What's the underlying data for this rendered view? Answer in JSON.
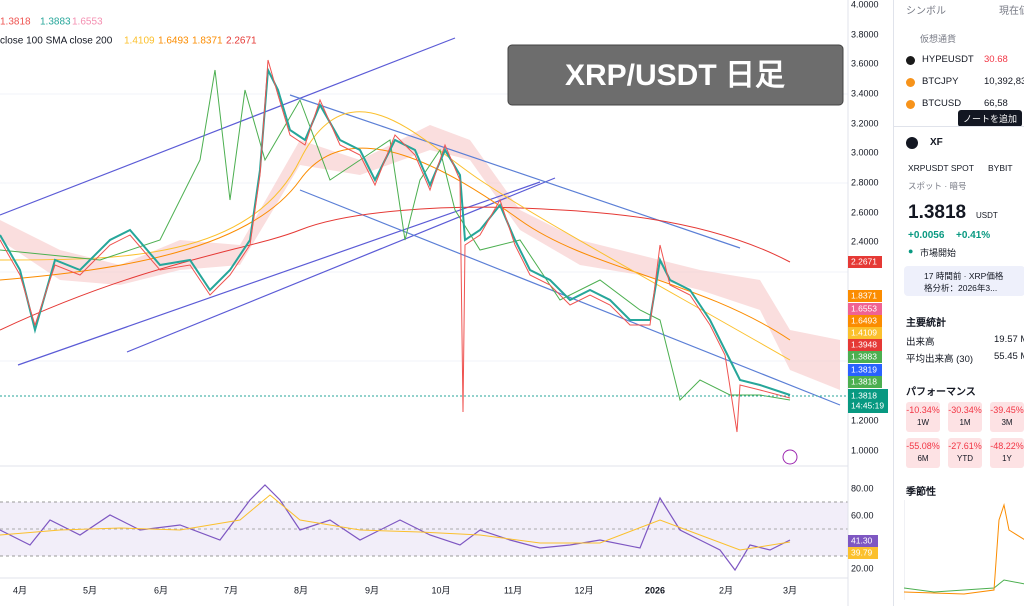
{
  "legend": {
    "line1": [
      "1.3818",
      "1.3883",
      "1.6553"
    ],
    "line2_label": "close 100 SMA close 200",
    "line2": [
      "1.4109",
      "1.6493",
      "1.8371",
      "2.2671"
    ]
  },
  "banner": "XRP/USDT 日足",
  "price_axis": [
    "4.0000",
    "3.8000",
    "3.6000",
    "3.4000",
    "3.2000",
    "3.0000",
    "2.8000",
    "2.6000",
    "2.4000",
    "1.2000",
    "1.0000"
  ],
  "price_tags": [
    "2.2671",
    "1.8371",
    "1.6553",
    "1.6493",
    "1.4109",
    "1.3948",
    "1.3883",
    "1.3819",
    "1.3818"
  ],
  "last_price": {
    "price": "1.3818",
    "countdown": "14:45:19"
  },
  "rsi_axis": [
    "80.00",
    "60.00",
    "20.00"
  ],
  "rsi_tags": [
    "41.30",
    "39.79"
  ],
  "time_axis": [
    "4月",
    "5月",
    "6月",
    "7月",
    "8月",
    "9月",
    "10月",
    "11月",
    "12月",
    "2026",
    "2月",
    "3月"
  ],
  "panel": {
    "col_symbol": "シンボル",
    "col_price": "現在値",
    "section": "仮想通貨",
    "watchlist": [
      {
        "symbol": "HYPEUSDT",
        "price": "30.68"
      },
      {
        "symbol": "BTCJPY",
        "price": "10,392,83"
      },
      {
        "symbol": "BTCUSD",
        "price": "66,58"
      }
    ],
    "tooltip": "ノートを追加",
    "ticker": "XF",
    "pair": "XRPUSDT SPOT",
    "exchange": "BYBIT",
    "kind": "スポット · 暗号",
    "price": "1.3818",
    "currency": "USDT",
    "change": "+0.0056",
    "change_pct": "+0.41%",
    "market": "市場開始",
    "news_time": "17 時間前 · XRP価格",
    "news": "格分析：2026年3...",
    "stats_title": "主要統計",
    "stats": [
      {
        "label": "出来高",
        "value": "19.57 M"
      },
      {
        "label": "平均出来高 (30)",
        "value": "55.45 M"
      }
    ],
    "perf_title": "パフォーマンス",
    "perf": [
      {
        "value": "-10.34%",
        "period": "1W"
      },
      {
        "value": "-30.34%",
        "period": "1M"
      },
      {
        "value": "-39.45%",
        "period": "3M"
      },
      {
        "value": "-55.08%",
        "period": "6M"
      },
      {
        "value": "-27.61%",
        "period": "YTD"
      },
      {
        "value": "-48.22%",
        "period": "1Y"
      }
    ],
    "season_title": "季節性"
  }
}
